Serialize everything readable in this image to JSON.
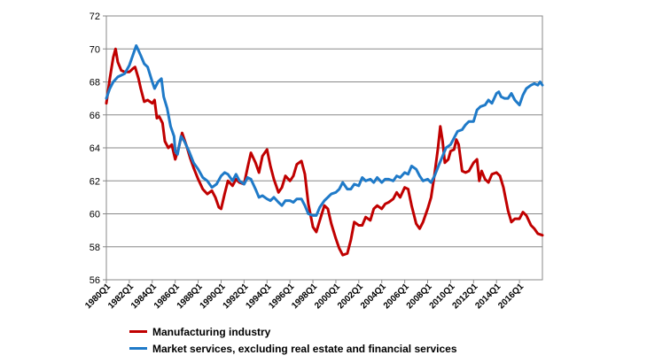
{
  "chart_data": {
    "type": "line",
    "title": "",
    "xlabel": "",
    "ylabel": "",
    "ylim": [
      56,
      72
    ],
    "yticks": [
      56,
      58,
      60,
      62,
      64,
      66,
      68,
      70,
      72
    ],
    "xticks": [
      "1980Q1",
      "1982Q1",
      "1984Q1",
      "1986Q1",
      "1988Q1",
      "1990Q1",
      "1992Q1",
      "1994Q1",
      "1996Q1",
      "1998Q1",
      "2000Q1",
      "2002Q1",
      "2004Q1",
      "2006Q1",
      "2008Q1",
      "2010Q1",
      "2012Q1",
      "2014Q1",
      "2016Q1"
    ],
    "x_start_year": 1980,
    "x_end_year": 2018,
    "grid": true,
    "legend_position": "bottom",
    "series": [
      {
        "name": "Manufacturing industry",
        "color": "#c00000",
        "points": [
          [
            1980.0,
            66.7
          ],
          [
            1980.3,
            68.2
          ],
          [
            1980.6,
            69.5
          ],
          [
            1980.8,
            70.0
          ],
          [
            1981.0,
            69.2
          ],
          [
            1981.3,
            68.7
          ],
          [
            1981.6,
            68.6
          ],
          [
            1982.0,
            68.6
          ],
          [
            1982.3,
            68.8
          ],
          [
            1982.5,
            68.9
          ],
          [
            1982.8,
            68.2
          ],
          [
            1983.0,
            67.6
          ],
          [
            1983.3,
            66.8
          ],
          [
            1983.6,
            66.9
          ],
          [
            1984.0,
            66.7
          ],
          [
            1984.2,
            66.9
          ],
          [
            1984.4,
            65.8
          ],
          [
            1984.6,
            65.9
          ],
          [
            1984.9,
            65.5
          ],
          [
            1985.1,
            64.4
          ],
          [
            1985.4,
            64.0
          ],
          [
            1985.7,
            64.2
          ],
          [
            1986.0,
            63.3
          ],
          [
            1986.3,
            64.0
          ],
          [
            1986.6,
            64.9
          ],
          [
            1987.0,
            64.1
          ],
          [
            1987.3,
            63.4
          ],
          [
            1987.6,
            62.8
          ],
          [
            1988.0,
            62.1
          ],
          [
            1988.4,
            61.5
          ],
          [
            1988.8,
            61.2
          ],
          [
            1989.2,
            61.4
          ],
          [
            1989.5,
            61.0
          ],
          [
            1989.8,
            60.4
          ],
          [
            1990.0,
            60.3
          ],
          [
            1990.3,
            61.2
          ],
          [
            1990.6,
            62.0
          ],
          [
            1991.0,
            61.7
          ],
          [
            1991.3,
            62.1
          ],
          [
            1991.6,
            61.9
          ],
          [
            1992.0,
            61.8
          ],
          [
            1992.3,
            62.8
          ],
          [
            1992.6,
            63.7
          ],
          [
            1993.0,
            63.1
          ],
          [
            1993.3,
            62.5
          ],
          [
            1993.6,
            63.5
          ],
          [
            1994.0,
            63.9
          ],
          [
            1994.3,
            62.9
          ],
          [
            1994.6,
            62.1
          ],
          [
            1995.0,
            61.3
          ],
          [
            1995.3,
            61.6
          ],
          [
            1995.6,
            62.3
          ],
          [
            1996.0,
            62.0
          ],
          [
            1996.3,
            62.3
          ],
          [
            1996.6,
            63.0
          ],
          [
            1997.0,
            63.2
          ],
          [
            1997.3,
            62.4
          ],
          [
            1997.6,
            60.6
          ],
          [
            1998.0,
            59.2
          ],
          [
            1998.3,
            58.9
          ],
          [
            1998.6,
            59.6
          ],
          [
            1999.0,
            60.5
          ],
          [
            1999.3,
            60.3
          ],
          [
            1999.6,
            59.4
          ],
          [
            2000.0,
            58.5
          ],
          [
            2000.3,
            57.9
          ],
          [
            2000.6,
            57.5
          ],
          [
            2001.0,
            57.6
          ],
          [
            2001.3,
            58.4
          ],
          [
            2001.6,
            59.5
          ],
          [
            2002.0,
            59.3
          ],
          [
            2002.3,
            59.3
          ],
          [
            2002.6,
            59.8
          ],
          [
            2003.0,
            59.6
          ],
          [
            2003.3,
            60.3
          ],
          [
            2003.6,
            60.5
          ],
          [
            2004.0,
            60.3
          ],
          [
            2004.3,
            60.6
          ],
          [
            2004.6,
            60.7
          ],
          [
            2005.0,
            60.9
          ],
          [
            2005.3,
            61.3
          ],
          [
            2005.6,
            61.0
          ],
          [
            2006.0,
            61.6
          ],
          [
            2006.3,
            61.5
          ],
          [
            2006.6,
            60.5
          ],
          [
            2007.0,
            59.4
          ],
          [
            2007.3,
            59.1
          ],
          [
            2007.6,
            59.5
          ],
          [
            2008.0,
            60.3
          ],
          [
            2008.3,
            61.0
          ],
          [
            2008.6,
            62.4
          ],
          [
            2008.9,
            64.0
          ],
          [
            2009.1,
            65.3
          ],
          [
            2009.3,
            64.4
          ],
          [
            2009.5,
            63.1
          ],
          [
            2009.8,
            63.3
          ],
          [
            2010.0,
            63.8
          ],
          [
            2010.3,
            63.9
          ],
          [
            2010.5,
            64.5
          ],
          [
            2010.7,
            64.2
          ],
          [
            2011.0,
            62.6
          ],
          [
            2011.3,
            62.5
          ],
          [
            2011.6,
            62.6
          ],
          [
            2012.0,
            63.1
          ],
          [
            2012.3,
            63.3
          ],
          [
            2012.5,
            62.0
          ],
          [
            2012.7,
            62.6
          ],
          [
            2013.0,
            62.1
          ],
          [
            2013.3,
            61.9
          ],
          [
            2013.6,
            62.4
          ],
          [
            2014.0,
            62.5
          ],
          [
            2014.3,
            62.3
          ],
          [
            2014.6,
            61.6
          ],
          [
            2015.0,
            60.2
          ],
          [
            2015.3,
            59.5
          ],
          [
            2015.6,
            59.7
          ],
          [
            2016.0,
            59.7
          ],
          [
            2016.3,
            60.1
          ],
          [
            2016.6,
            59.9
          ],
          [
            2017.0,
            59.3
          ],
          [
            2017.3,
            59.1
          ],
          [
            2017.6,
            58.8
          ],
          [
            2018.0,
            58.7
          ]
        ]
      },
      {
        "name": "Market services, excluding real estate and financial services",
        "color": "#1f7ac8",
        "points": [
          [
            1980.0,
            67.0
          ],
          [
            1980.3,
            67.6
          ],
          [
            1980.6,
            68.0
          ],
          [
            1981.0,
            68.3
          ],
          [
            1981.3,
            68.4
          ],
          [
            1981.6,
            68.5
          ],
          [
            1982.0,
            69.0
          ],
          [
            1982.3,
            69.6
          ],
          [
            1982.6,
            70.2
          ],
          [
            1982.8,
            69.9
          ],
          [
            1983.0,
            69.6
          ],
          [
            1983.3,
            69.1
          ],
          [
            1983.6,
            68.9
          ],
          [
            1984.0,
            68.0
          ],
          [
            1984.2,
            67.6
          ],
          [
            1984.5,
            68.0
          ],
          [
            1984.8,
            68.2
          ],
          [
            1985.0,
            67.1
          ],
          [
            1985.3,
            66.4
          ],
          [
            1985.6,
            65.3
          ],
          [
            1985.9,
            64.7
          ],
          [
            1986.0,
            63.8
          ],
          [
            1986.2,
            63.6
          ],
          [
            1986.5,
            64.7
          ],
          [
            1986.8,
            64.4
          ],
          [
            1987.2,
            63.8
          ],
          [
            1987.6,
            63.1
          ],
          [
            1988.0,
            62.7
          ],
          [
            1988.4,
            62.2
          ],
          [
            1988.8,
            62.0
          ],
          [
            1989.2,
            61.6
          ],
          [
            1989.6,
            61.8
          ],
          [
            1990.0,
            62.3
          ],
          [
            1990.3,
            62.5
          ],
          [
            1990.6,
            62.4
          ],
          [
            1991.0,
            62.0
          ],
          [
            1991.3,
            62.4
          ],
          [
            1991.6,
            62.0
          ],
          [
            1992.0,
            61.8
          ],
          [
            1992.3,
            62.2
          ],
          [
            1992.6,
            62.1
          ],
          [
            1993.0,
            61.5
          ],
          [
            1993.3,
            61.0
          ],
          [
            1993.6,
            61.1
          ],
          [
            1994.0,
            60.9
          ],
          [
            1994.3,
            60.8
          ],
          [
            1994.6,
            61.0
          ],
          [
            1995.0,
            60.7
          ],
          [
            1995.3,
            60.5
          ],
          [
            1995.6,
            60.8
          ],
          [
            1996.0,
            60.8
          ],
          [
            1996.3,
            60.7
          ],
          [
            1996.6,
            60.9
          ],
          [
            1997.0,
            60.9
          ],
          [
            1997.3,
            60.5
          ],
          [
            1997.6,
            60.0
          ],
          [
            1998.0,
            59.9
          ],
          [
            1998.3,
            59.9
          ],
          [
            1998.6,
            60.4
          ],
          [
            1999.0,
            60.8
          ],
          [
            1999.3,
            61.0
          ],
          [
            1999.6,
            61.2
          ],
          [
            2000.0,
            61.3
          ],
          [
            2000.3,
            61.5
          ],
          [
            2000.6,
            61.9
          ],
          [
            2001.0,
            61.5
          ],
          [
            2001.3,
            61.5
          ],
          [
            2001.6,
            61.8
          ],
          [
            2002.0,
            61.7
          ],
          [
            2002.3,
            62.2
          ],
          [
            2002.6,
            62.0
          ],
          [
            2003.0,
            62.1
          ],
          [
            2003.3,
            61.9
          ],
          [
            2003.6,
            62.2
          ],
          [
            2004.0,
            61.9
          ],
          [
            2004.3,
            62.1
          ],
          [
            2004.6,
            62.1
          ],
          [
            2005.0,
            62.0
          ],
          [
            2005.3,
            62.3
          ],
          [
            2005.6,
            62.2
          ],
          [
            2006.0,
            62.5
          ],
          [
            2006.3,
            62.4
          ],
          [
            2006.6,
            62.9
          ],
          [
            2007.0,
            62.7
          ],
          [
            2007.3,
            62.3
          ],
          [
            2007.6,
            62.0
          ],
          [
            2008.0,
            62.1
          ],
          [
            2008.3,
            61.9
          ],
          [
            2008.6,
            62.3
          ],
          [
            2009.0,
            63.0
          ],
          [
            2009.3,
            63.5
          ],
          [
            2009.6,
            64.0
          ],
          [
            2010.0,
            64.2
          ],
          [
            2010.3,
            64.6
          ],
          [
            2010.6,
            65.0
          ],
          [
            2011.0,
            65.1
          ],
          [
            2011.3,
            65.4
          ],
          [
            2011.6,
            65.6
          ],
          [
            2012.0,
            65.6
          ],
          [
            2012.3,
            66.3
          ],
          [
            2012.6,
            66.5
          ],
          [
            2013.0,
            66.6
          ],
          [
            2013.3,
            66.9
          ],
          [
            2013.6,
            66.7
          ],
          [
            2014.0,
            67.3
          ],
          [
            2014.2,
            67.4
          ],
          [
            2014.4,
            67.1
          ],
          [
            2014.7,
            67.0
          ],
          [
            2015.0,
            67.0
          ],
          [
            2015.3,
            67.3
          ],
          [
            2015.6,
            66.9
          ],
          [
            2016.0,
            66.6
          ],
          [
            2016.3,
            67.2
          ],
          [
            2016.6,
            67.6
          ],
          [
            2017.0,
            67.8
          ],
          [
            2017.3,
            67.9
          ],
          [
            2017.6,
            67.8
          ],
          [
            2017.8,
            68.0
          ],
          [
            2018.0,
            67.8
          ]
        ]
      }
    ]
  }
}
